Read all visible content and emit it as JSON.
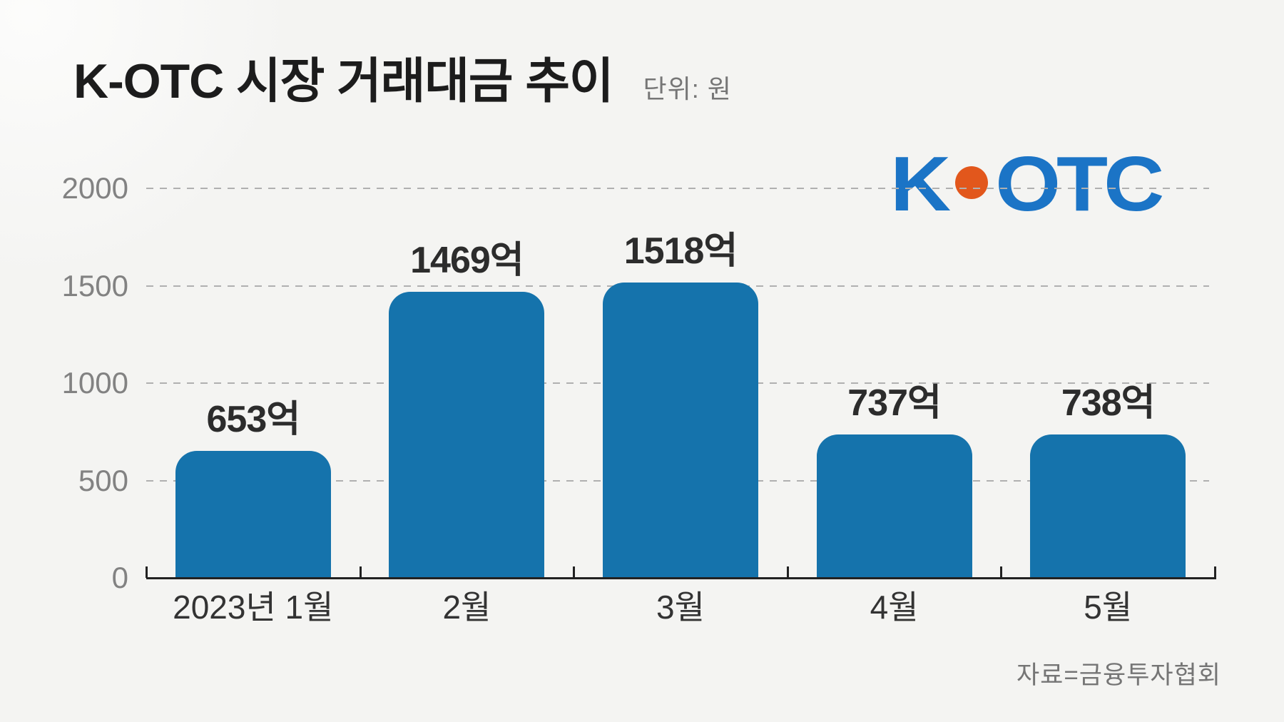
{
  "header": {
    "title": "K-OTC 시장 거래대금 추이",
    "unit_label": "단위: 원"
  },
  "logo": {
    "k_text": "K",
    "otc_text": "OTC",
    "blue": "#1b74c6",
    "orange": "#e2571c"
  },
  "source_label": "자료=금융투자협회",
  "colors": {
    "background": "#f4f4f2",
    "bar": "#1573ac",
    "grid": "#b0b0b0",
    "axis": "#222222",
    "value_label": "#2c2c2c",
    "ytick_label": "#828282",
    "month_label": "#333333"
  },
  "chart_data": {
    "type": "bar",
    "title": "K-OTC 시장 거래대금 추이",
    "unit": "원 (억 단위 표기)",
    "categories": [
      "2023년 1월",
      "2월",
      "3월",
      "4월",
      "5월"
    ],
    "values": [
      653,
      1469,
      1518,
      737,
      738
    ],
    "value_labels": [
      "653억",
      "1469억",
      "1518억",
      "737억",
      "738억"
    ],
    "series_name": "K-OTC 시장 거래대금",
    "xlabel": "",
    "ylabel": "",
    "ylim": [
      0,
      2000
    ],
    "yticks": [
      0,
      500,
      1000,
      1500,
      2000
    ],
    "grid": "horizontal-dashed",
    "legend": "none",
    "bar_color": "#1573ac",
    "source": "자료=금융투자협회"
  }
}
